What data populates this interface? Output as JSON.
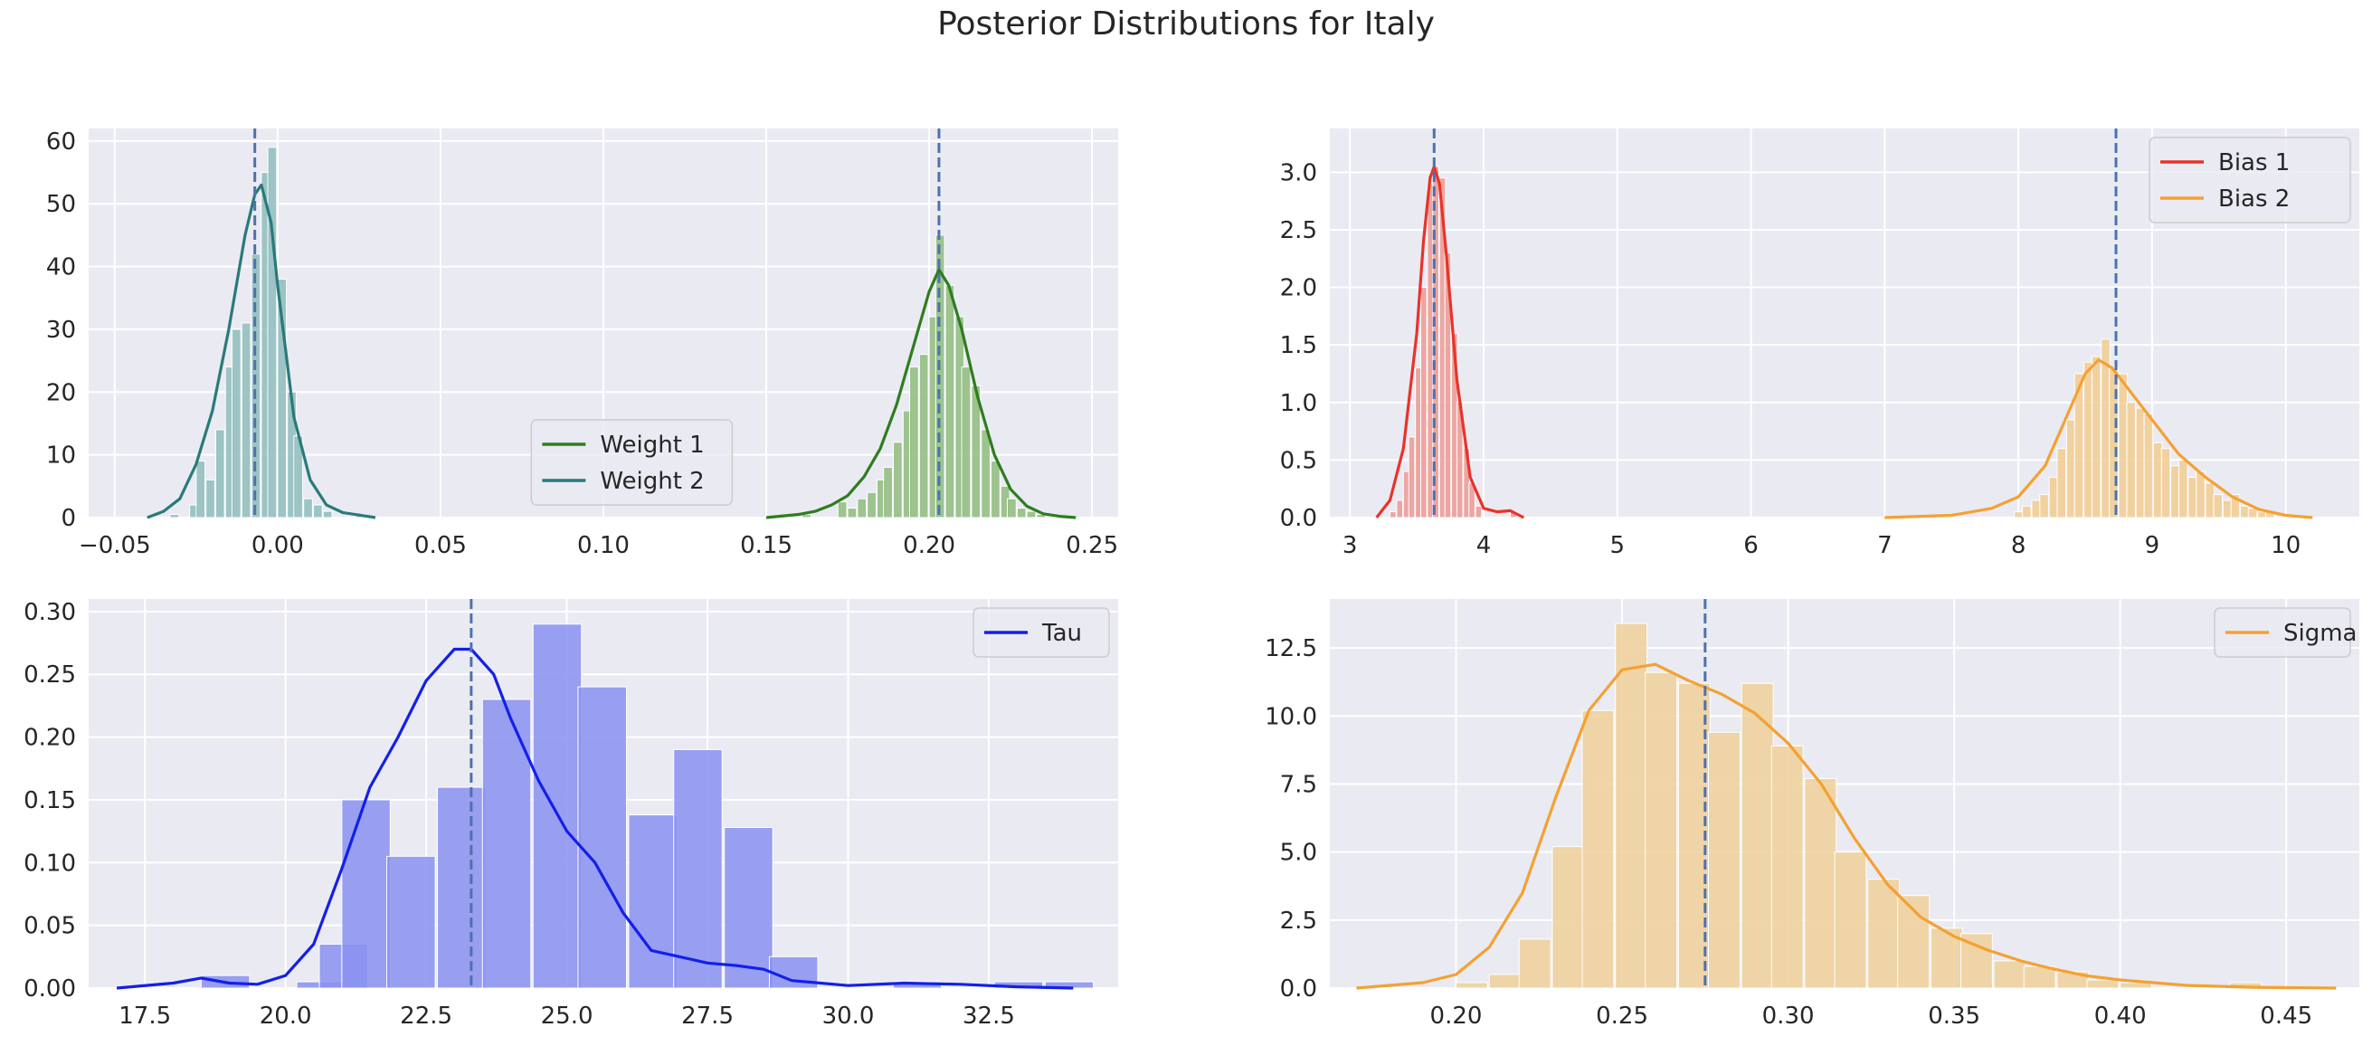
{
  "figure": {
    "title": "Posterior Distributions for Italy"
  },
  "chart_data": [
    {
      "id": "weights",
      "type": "histogram",
      "xlim": [
        -0.058,
        0.258
      ],
      "ylim": [
        0,
        62
      ],
      "xticks": [
        -0.05,
        0.0,
        0.05,
        0.1,
        0.15,
        0.2,
        0.25
      ],
      "xtick_labels": [
        "−0.05",
        "0.00",
        "0.05",
        "0.10",
        "0.15",
        "0.20",
        "0.25"
      ],
      "yticks": [
        0,
        10,
        20,
        30,
        40,
        50,
        60
      ],
      "ytick_labels": [
        "0",
        "10",
        "20",
        "30",
        "40",
        "50",
        "60"
      ],
      "legend_position": "lower-center",
      "vlines": [
        -0.007,
        0.203
      ],
      "series": [
        {
          "name": "Weight 1",
          "color": "#2e7d1e",
          "fill": "#8fbc7e",
          "bin_width": 0.0027,
          "bins_x": [
            0.161,
            0.172,
            0.175,
            0.178,
            0.181,
            0.184,
            0.186,
            0.189,
            0.192,
            0.194,
            0.197,
            0.2,
            0.202,
            0.205,
            0.208,
            0.21,
            0.213,
            0.216,
            0.219,
            0.222,
            0.224,
            0.227,
            0.23,
            0.233
          ],
          "bins_y": [
            0.5,
            2.5,
            1.5,
            3,
            4,
            6,
            8,
            12,
            17,
            24,
            26,
            32,
            45,
            37,
            32,
            24,
            21,
            14,
            9,
            5,
            3,
            1.5,
            1,
            0.5
          ],
          "kde_x": [
            0.15,
            0.16,
            0.165,
            0.17,
            0.175,
            0.18,
            0.185,
            0.19,
            0.195,
            0.2,
            0.203,
            0.206,
            0.21,
            0.215,
            0.22,
            0.225,
            0.23,
            0.235,
            0.24,
            0.245
          ],
          "kde_y": [
            0,
            0.5,
            1,
            2,
            3.5,
            6.5,
            11,
            18,
            27,
            36,
            39.5,
            37,
            30,
            19,
            10,
            4.5,
            1.8,
            0.6,
            0.2,
            0
          ]
        },
        {
          "name": "Weight 2",
          "color": "#2a7a7a",
          "fill": "#8fbdbd",
          "bin_width": 0.0027,
          "bins_x": [
            -0.033,
            -0.027,
            -0.025,
            -0.022,
            -0.019,
            -0.016,
            -0.014,
            -0.011,
            -0.008,
            -0.005,
            -0.003,
            0.0,
            0.003,
            0.005,
            0.008,
            0.011,
            0.014,
            0.024
          ],
          "bins_y": [
            0.5,
            2,
            9,
            6,
            14,
            24,
            30,
            31,
            42,
            55,
            59,
            38,
            20,
            13,
            3,
            2,
            1,
            0.5
          ],
          "kde_x": [
            -0.04,
            -0.035,
            -0.03,
            -0.025,
            -0.02,
            -0.015,
            -0.01,
            -0.007,
            -0.005,
            -0.002,
            0.0,
            0.005,
            0.01,
            0.015,
            0.02,
            0.025,
            0.03
          ],
          "kde_y": [
            0,
            1,
            3,
            8.5,
            17,
            30,
            45,
            51.5,
            53,
            47,
            37,
            16,
            6,
            2,
            0.8,
            0.4,
            0
          ]
        }
      ]
    },
    {
      "id": "biases",
      "type": "histogram",
      "xlim": [
        2.85,
        10.55
      ],
      "ylim": [
        0,
        3.38
      ],
      "xticks": [
        3,
        4,
        5,
        6,
        7,
        8,
        9,
        10
      ],
      "xtick_labels": [
        "3",
        "4",
        "5",
        "6",
        "7",
        "8",
        "9",
        "10"
      ],
      "yticks": [
        0,
        0.5,
        1,
        1.5,
        2,
        2.5,
        3
      ],
      "ytick_labels": [
        "0.0",
        "0.5",
        "1.0",
        "1.5",
        "2.0",
        "2.5",
        "3.0"
      ],
      "legend_position": "top-right",
      "vlines": [
        3.63,
        8.73
      ],
      "series": [
        {
          "name": "Bias 1",
          "color": "#e8332a",
          "fill": "#ec9a94",
          "bin_width": 0.045,
          "bins_x": [
            3.3,
            3.35,
            3.4,
            3.44,
            3.49,
            3.53,
            3.58,
            3.62,
            3.67,
            3.71,
            3.76,
            3.8,
            3.85,
            3.89,
            3.94,
            4.2
          ],
          "bins_y": [
            0.05,
            0.15,
            0.4,
            0.7,
            1.3,
            2.0,
            2.9,
            3.05,
            2.95,
            2.3,
            1.6,
            1.0,
            0.6,
            0.3,
            0.1,
            0.05
          ],
          "kde_x": [
            3.2,
            3.3,
            3.4,
            3.5,
            3.55,
            3.6,
            3.63,
            3.67,
            3.72,
            3.8,
            3.9,
            4.0,
            4.1,
            4.2,
            4.3
          ],
          "kde_y": [
            0,
            0.15,
            0.6,
            1.6,
            2.4,
            2.95,
            3.05,
            2.9,
            2.3,
            1.2,
            0.35,
            0.08,
            0.05,
            0.06,
            0
          ]
        },
        {
          "name": "Bias 2",
          "color": "#f4a132",
          "fill": "#f2cd92",
          "bin_width": 0.065,
          "bins_x": [
            7.97,
            8.03,
            8.1,
            8.16,
            8.23,
            8.29,
            8.36,
            8.42,
            8.49,
            8.55,
            8.62,
            8.68,
            8.75,
            8.81,
            8.88,
            8.94,
            9.01,
            9.07,
            9.14,
            9.2,
            9.27,
            9.33,
            9.4,
            9.46,
            9.53,
            9.59,
            9.66,
            9.72,
            9.79,
            9.85
          ],
          "bins_y": [
            0.05,
            0.1,
            0.15,
            0.2,
            0.35,
            0.6,
            0.85,
            1.25,
            1.35,
            1.4,
            1.55,
            1.3,
            1.25,
            1.0,
            0.95,
            0.9,
            0.65,
            0.6,
            0.45,
            0.5,
            0.35,
            0.4,
            0.3,
            0.2,
            0.15,
            0.2,
            0.1,
            0.08,
            0.05,
            0.05
          ],
          "kde_x": [
            7.0,
            7.5,
            7.8,
            8.0,
            8.2,
            8.35,
            8.5,
            8.6,
            8.7,
            8.8,
            9.0,
            9.2,
            9.4,
            9.6,
            9.8,
            10.0,
            10.2
          ],
          "kde_y": [
            0,
            0.02,
            0.08,
            0.18,
            0.45,
            0.85,
            1.25,
            1.37,
            1.3,
            1.15,
            0.85,
            0.55,
            0.35,
            0.18,
            0.07,
            0.02,
            0
          ]
        }
      ]
    },
    {
      "id": "tau",
      "type": "histogram",
      "xlim": [
        16.5,
        34.8
      ],
      "ylim": [
        0,
        0.31
      ],
      "xticks": [
        17.5,
        20,
        22.5,
        25,
        27.5,
        30,
        32.5
      ],
      "xtick_labels": [
        "17.5",
        "20.0",
        "22.5",
        "25.0",
        "27.5",
        "30.0",
        "32.5"
      ],
      "yticks": [
        0,
        0.05,
        0.1,
        0.15,
        0.2,
        0.25,
        0.3
      ],
      "ytick_labels": [
        "0.00",
        "0.05",
        "0.10",
        "0.15",
        "0.20",
        "0.25",
        "0.30"
      ],
      "legend_position": "top-right",
      "vlines": [
        23.3
      ],
      "series": [
        {
          "name": "Tau",
          "color": "#1220e8",
          "fill": "#8a90f0",
          "bin_width": 0.86,
          "bins_x": [
            18.5,
            20.2,
            20.6,
            21.0,
            21.8,
            22.7,
            23.5,
            24.4,
            25.2,
            26.1,
            26.9,
            27.8,
            28.6,
            30.8,
            32.6,
            33.5
          ],
          "bins_y": [
            0.01,
            0.005,
            0.035,
            0.15,
            0.105,
            0.16,
            0.23,
            0.29,
            0.24,
            0.138,
            0.19,
            0.128,
            0.025,
            0.005,
            0.005,
            0.005
          ],
          "kde_x": [
            17.0,
            18.0,
            18.5,
            19.0,
            19.5,
            20.0,
            20.5,
            21.0,
            21.5,
            22.0,
            22.5,
            23.0,
            23.3,
            23.7,
            24.0,
            24.5,
            25.0,
            25.5,
            26.0,
            26.5,
            27.0,
            27.5,
            28.0,
            28.5,
            29.0,
            30.0,
            31.0,
            32.0,
            33.0,
            34.0
          ],
          "kde_y": [
            0,
            0.004,
            0.008,
            0.004,
            0.003,
            0.01,
            0.035,
            0.095,
            0.16,
            0.2,
            0.245,
            0.27,
            0.27,
            0.25,
            0.215,
            0.165,
            0.125,
            0.1,
            0.06,
            0.03,
            0.025,
            0.02,
            0.018,
            0.015,
            0.006,
            0.002,
            0.004,
            0.003,
            0.001,
            0
          ]
        }
      ]
    },
    {
      "id": "sigma",
      "type": "histogram",
      "xlim": [
        0.162,
        0.472
      ],
      "ylim": [
        0,
        14.3
      ],
      "xticks": [
        0.2,
        0.25,
        0.3,
        0.35,
        0.4,
        0.45
      ],
      "xtick_labels": [
        "0.20",
        "0.25",
        "0.30",
        "0.35",
        "0.40",
        "0.45"
      ],
      "yticks": [
        0,
        2.5,
        5,
        7.5,
        10,
        12.5
      ],
      "ytick_labels": [
        "0.0",
        "2.5",
        "5.0",
        "7.5",
        "10.0",
        "12.5"
      ],
      "legend_position": "top-right",
      "vlines": [
        0.275
      ],
      "series": [
        {
          "name": "Sigma",
          "color": "#f4a132",
          "fill": "#eed099",
          "bin_width": 0.0095,
          "bins_x": [
            0.2,
            0.21,
            0.219,
            0.229,
            0.238,
            0.248,
            0.257,
            0.267,
            0.276,
            0.286,
            0.295,
            0.305,
            0.314,
            0.324,
            0.333,
            0.343,
            0.352,
            0.362,
            0.371,
            0.381,
            0.39,
            0.4,
            0.433
          ],
          "bins_y": [
            0.2,
            0.5,
            1.8,
            5.2,
            10.2,
            13.4,
            11.6,
            11.2,
            9.4,
            11.2,
            8.9,
            7.7,
            5.0,
            4.0,
            3.4,
            2.2,
            2.0,
            1.0,
            0.8,
            0.6,
            0.3,
            0.2,
            0.2
          ],
          "kde_x": [
            0.17,
            0.19,
            0.2,
            0.21,
            0.22,
            0.23,
            0.24,
            0.25,
            0.26,
            0.27,
            0.28,
            0.29,
            0.3,
            0.31,
            0.32,
            0.33,
            0.34,
            0.35,
            0.36,
            0.37,
            0.38,
            0.39,
            0.4,
            0.42,
            0.44,
            0.465
          ],
          "kde_y": [
            0,
            0.2,
            0.5,
            1.5,
            3.5,
            7.0,
            10.2,
            11.7,
            11.9,
            11.3,
            10.8,
            10.1,
            9.0,
            7.5,
            5.5,
            3.8,
            2.6,
            1.9,
            1.4,
            1.0,
            0.7,
            0.45,
            0.3,
            0.1,
            0.03,
            0
          ]
        }
      ]
    }
  ]
}
